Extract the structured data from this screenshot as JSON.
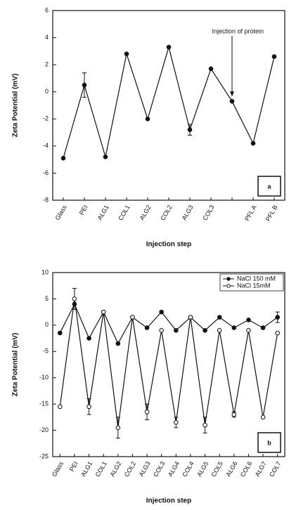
{
  "chart_data": [
    {
      "type": "line",
      "y_label": "Zeta Potential (mV)",
      "x_label": "Injection step",
      "categories": [
        "Glass",
        "PEI",
        "ALG1",
        "COL1",
        "ALG2",
        "COL2",
        "ALG3",
        "COL3",
        null,
        "PFL A",
        "PFL B"
      ],
      "values": [
        -4.9,
        0.5,
        -4.8,
        2.8,
        -2,
        3.3,
        -2.8,
        1.7,
        -0.7,
        -3.8,
        2.6
      ],
      "errors": [
        null,
        0.9,
        null,
        null,
        null,
        null,
        0.4,
        null,
        null,
        null,
        null
      ],
      "color": "#111111",
      "marker": "filled",
      "ylim": [
        -8,
        6
      ],
      "yticks": [
        -8,
        -6,
        -4,
        -2,
        0,
        2,
        4,
        6
      ],
      "annotation": "Injection of protein",
      "panel_label": "a"
    },
    {
      "type": "line",
      "y_label": "Zeta Potential (mV)",
      "x_label": "Injection step",
      "categories": [
        "Glass",
        "PEI",
        "ALG1",
        "COL1",
        "ALG2",
        "COL2",
        "ALG3",
        "COL3",
        "ALG4",
        "COL4",
        "ALG5",
        "COL5",
        "ALG6",
        "COL6",
        "ALG7",
        "COL7"
      ],
      "series": [
        {
          "name": "NaCl 150 mM",
          "color": "#111111",
          "marker": "filled",
          "values": [
            -1.5,
            4,
            -2.5,
            2.5,
            -3.5,
            1.5,
            -0.5,
            2.5,
            -1,
            1.5,
            -1,
            1.5,
            -0.5,
            1,
            -0.5,
            1.5
          ],
          "errors": [
            null,
            null,
            null,
            null,
            null,
            null,
            null,
            null,
            null,
            null,
            null,
            null,
            null,
            null,
            null,
            1
          ]
        },
        {
          "name": "NaCl 15mM",
          "color": "#111111",
          "marker": "open",
          "values": [
            -15.5,
            5,
            -15.5,
            2.5,
            -19.5,
            1.5,
            -16.5,
            -1,
            -18.5,
            1.5,
            -19,
            -1,
            -17,
            -1,
            -17.5,
            -1.5
          ],
          "errors": [
            null,
            2,
            1.5,
            null,
            2,
            null,
            1.5,
            null,
            1,
            null,
            1.5,
            null,
            0.5,
            null,
            null,
            null
          ]
        }
      ],
      "ylim": [
        -25,
        10
      ],
      "yticks": [
        -25,
        -20,
        -15,
        -10,
        -5,
        0,
        5,
        10
      ],
      "panel_label": "b"
    }
  ]
}
